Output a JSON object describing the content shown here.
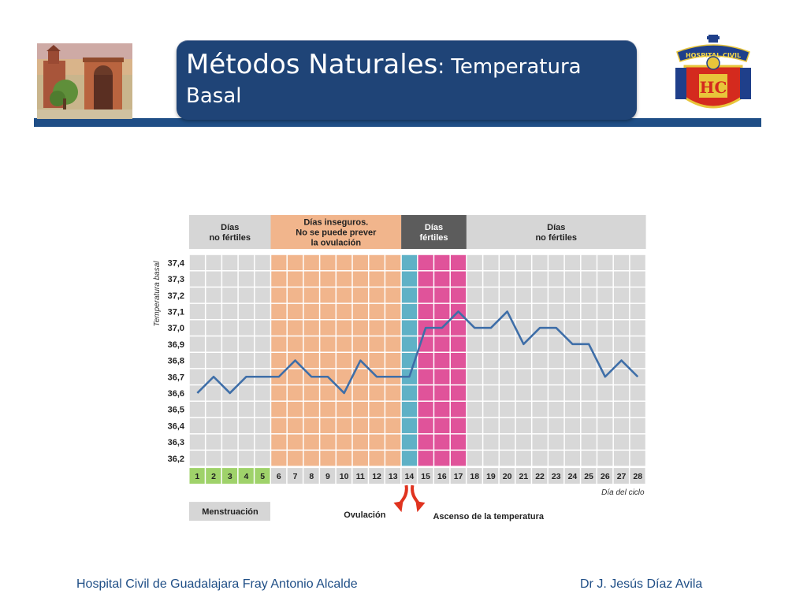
{
  "slide": {
    "title_main": "Métodos Naturales",
    "title_sub": ": Temperatura",
    "title_second_line": "Basal",
    "footer_left": "Hospital Civil de Guadalajara Fray Antonio Alcalde",
    "footer_right": "Dr J. Jesús Díaz Avila",
    "logo_right_text": "HOSPITAL CIVIL"
  },
  "colors": {
    "header_blue": "#1f4e86",
    "title_box": "#1f4477",
    "line": "#3e6ea8",
    "grid_cell": "#d8d8d8",
    "zone_unsafe": "#f1b58c",
    "zone_ovulation": "#5fb1c6",
    "zone_fertile": "#e0539a",
    "zone_header_fertile": "#5c5c5c",
    "menstruation_day": "#9fd26a"
  },
  "chart_data": {
    "type": "line",
    "ylabel": "Temperatura basal",
    "xlabel": "Día del ciclo",
    "ylim": [
      36.2,
      37.4
    ],
    "yticks": [
      "36,2",
      "36,3",
      "36,4",
      "36,5",
      "36,6",
      "36,7",
      "36,8",
      "36,9",
      "37,0",
      "37,1",
      "37,2",
      "37,3",
      "37,4"
    ],
    "x": [
      1,
      2,
      3,
      4,
      5,
      6,
      7,
      8,
      9,
      10,
      11,
      12,
      13,
      14,
      15,
      16,
      17,
      18,
      19,
      20,
      21,
      22,
      23,
      24,
      25,
      26,
      27,
      28
    ],
    "series": [
      {
        "values": [
          36.6,
          36.7,
          36.6,
          36.7,
          36.7,
          36.7,
          36.8,
          36.7,
          36.7,
          36.6,
          36.8,
          36.7,
          36.7,
          36.7,
          37.0,
          37.0,
          37.1,
          37.0,
          37.0,
          37.1,
          36.9,
          37.0,
          37.0,
          36.9,
          36.9,
          36.7,
          36.8,
          36.7
        ]
      }
    ],
    "zones": [
      {
        "label": [
          "Días",
          "no fértiles"
        ],
        "from": 1,
        "to": 5,
        "kind": "normal"
      },
      {
        "label": [
          "Días inseguros.",
          "No se puede prever",
          "la ovulación"
        ],
        "from": 6,
        "to": 13,
        "kind": "unsafe"
      },
      {
        "label": [
          "Días",
          "fértiles"
        ],
        "from": 14,
        "to": 17,
        "kind": "fertile"
      },
      {
        "label": [
          "Días",
          "no fértiles"
        ],
        "from": 18,
        "to": 28,
        "kind": "normal"
      }
    ],
    "menstruation_days": [
      1,
      2,
      3,
      4,
      5
    ],
    "ovulation_day": 14,
    "annotations": {
      "menstruation": "Menstruación",
      "ovulation": "Ovulación",
      "rise": "Ascenso de la temperatura"
    }
  }
}
